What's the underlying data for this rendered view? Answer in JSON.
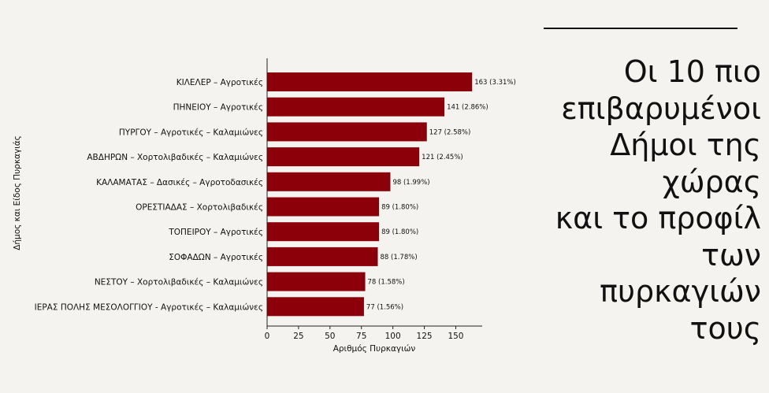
{
  "chart_data": {
    "type": "bar",
    "orientation": "horizontal",
    "categories": [
      "ΚΙΛΕΛΕΡ – Αγροτικές",
      "ΠΗΝΕΙΟΥ – Αγροτικές",
      "ΠΥΡΓΟΥ – Αγροτικές – Καλαμιώνες",
      "ΑΒΔΗΡΩΝ – Χορτολιβαδικές – Καλαμιώνες",
      "ΚΑΛΑΜΑΤΑΣ – Δασικές – Αγροτοδασικές",
      "ΟΡΕΣΤΙΑΔΑΣ – Χορτολιβαδικές",
      "ΤΟΠΕΙΡΟΥ – Αγροτικές",
      "ΣΟΦΑΔΩΝ – Αγροτικές",
      "ΝΕΣΤΟΥ – Χορτολιβαδικές – Καλαμιώνες",
      "ΙΕΡΑΣ ΠΟΛΗΣ ΜΕΣΟΛΟΓΓΙΟΥ - Αγροτικές – Καλαμιώνες"
    ],
    "values": [
      163,
      141,
      127,
      121,
      98,
      89,
      89,
      88,
      78,
      77
    ],
    "data_labels": [
      "163 (3.31%)",
      "141 (2.86%)",
      "127 (2.58%)",
      "121 (2.45%)",
      "98 (1.99%)",
      "89 (1.80%)",
      "89 (1.80%)",
      "88 (1.78%)",
      "78 (1.58%)",
      "77 (1.56%)"
    ],
    "xlabel": "Αριθμός Πυρκαγιών",
    "ylabel": "Δήμος και Είδος Πυρκαγιάς",
    "xlim": [
      0,
      171
    ],
    "xticks": [
      0,
      25,
      50,
      75,
      100,
      125,
      150
    ],
    "bar_color": "#8b0009",
    "grid": false
  },
  "side_panel": {
    "title": "Οι 10 πιο\nεπιβαρυμένοι\nΔήμοι της\nχώρας\nκαι το προφίλ\nτων\nπυρκαγιών\nτους"
  }
}
